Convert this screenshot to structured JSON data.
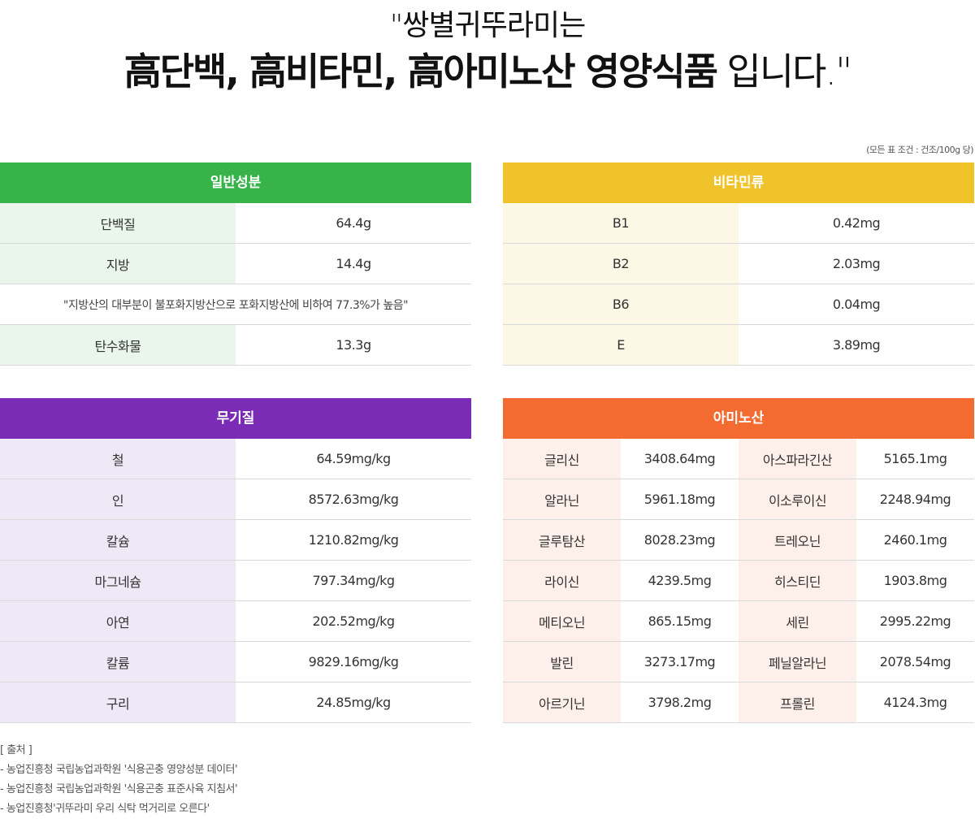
{
  "headline": {
    "line1": "\"쌍별귀뚜라미는",
    "line2_bold": "高단백, 高비타민, 高아미노산 영양식품",
    "line2_light": " 입니다.\""
  },
  "note": "(모든 표 조건 : 건조/100g 당)",
  "general": {
    "title": "일반성분",
    "rows": [
      {
        "label": "단백질",
        "value": "64.4g"
      },
      {
        "label": "지방",
        "value": "14.4g"
      }
    ],
    "remark": "\"지방산의 대부분이 불포화지방산으로 포화지방산에 비하여 77.3%가 높음\"",
    "last": {
      "label": "탄수화물",
      "value": "13.3g"
    }
  },
  "vitamin": {
    "title": "비타민류",
    "rows": [
      {
        "label": "B1",
        "value": "0.42mg"
      },
      {
        "label": "B2",
        "value": "2.03mg"
      },
      {
        "label": "B6",
        "value": "0.04mg"
      },
      {
        "label": "E",
        "value": "3.89mg"
      }
    ]
  },
  "mineral": {
    "title": "무기질",
    "rows": [
      {
        "label": "철",
        "value": "64.59mg/kg"
      },
      {
        "label": "인",
        "value": "8572.63mg/kg"
      },
      {
        "label": "칼슘",
        "value": "1210.82mg/kg"
      },
      {
        "label": "마그네슘",
        "value": "797.34mg/kg"
      },
      {
        "label": "아연",
        "value": "202.52mg/kg"
      },
      {
        "label": "칼륨",
        "value": "9829.16mg/kg"
      },
      {
        "label": "구리",
        "value": "24.85mg/kg"
      }
    ]
  },
  "amino": {
    "title": "아미노산",
    "rows": [
      {
        "l1": "글리신",
        "v1": "3408.64mg",
        "l2": "아스파라긴산",
        "v2": "5165.1mg"
      },
      {
        "l1": "알라닌",
        "v1": "5961.18mg",
        "l2": "이소루이신",
        "v2": "2248.94mg"
      },
      {
        "l1": "글루탐산",
        "v1": "8028.23mg",
        "l2": "트레오닌",
        "v2": "2460.1mg"
      },
      {
        "l1": "라이신",
        "v1": "4239.5mg",
        "l2": "히스티딘",
        "v2": "1903.8mg"
      },
      {
        "l1": "메티오닌",
        "v1": "865.15mg",
        "l2": "세린",
        "v2": "2995.22mg"
      },
      {
        "l1": "발린",
        "v1": "3273.17mg",
        "l2": "페닐알라닌",
        "v2": "2078.54mg"
      },
      {
        "l1": "아르기닌",
        "v1": "3798.2mg",
        "l2": "프롤린",
        "v2": "4124.3mg"
      }
    ]
  },
  "sources": {
    "title": "[ 출처 ]",
    "items": [
      "- 농업진흥청 국립농업과학원 '식용곤충 영양성분 데이터'",
      "- 농업진흥청 국립농업과학원 '식용곤충 표준사육 지침서'",
      "- 농업진흥청'귀뚜라미 우리 식탁 먹거리로 오른다'"
    ]
  }
}
